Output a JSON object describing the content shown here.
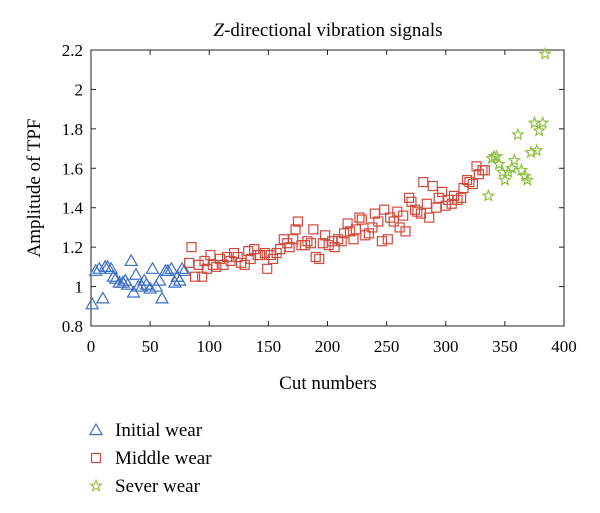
{
  "chart_data": {
    "type": "scatter",
    "title": "Z-directional vibration signals",
    "title_italic_part": "Z",
    "title_rest": "-directional vibration signals",
    "xlabel": "Cut numbers",
    "ylabel": "Amplitude of TPF",
    "xlim": [
      0,
      400
    ],
    "ylim": [
      0.8,
      2.2
    ],
    "x_ticks": [
      0,
      50,
      100,
      150,
      200,
      250,
      300,
      350,
      400
    ],
    "y_ticks": [
      0.8,
      1,
      1.2,
      1.4,
      1.6,
      1.8,
      2,
      2.2
    ],
    "x_tick_labels": [
      "0",
      "50",
      "100",
      "150",
      "200",
      "250",
      "300",
      "350",
      "400"
    ],
    "y_tick_labels": [
      "0.8",
      "1",
      "1.2",
      "1.4",
      "1.6",
      "1.8",
      "2",
      "2.2"
    ],
    "grid": false,
    "legend_position": "below-left",
    "series": [
      {
        "name": "Initial wear",
        "marker": "triangle",
        "color": "#3b6fc4",
        "points": [
          [
            1,
            0.91
          ],
          [
            4,
            1.08
          ],
          [
            7,
            1.09
          ],
          [
            10,
            0.94
          ],
          [
            12,
            1.1
          ],
          [
            14,
            1.1
          ],
          [
            17,
            1.09
          ],
          [
            19,
            1.05
          ],
          [
            21,
            1.04
          ],
          [
            24,
            1.02
          ],
          [
            27,
            1.02
          ],
          [
            29,
            1.03
          ],
          [
            31,
            1.01
          ],
          [
            34,
            1.13
          ],
          [
            36,
            0.97
          ],
          [
            38,
            1.06
          ],
          [
            40,
            1.0
          ],
          [
            43,
            1.0
          ],
          [
            45,
            1.03
          ],
          [
            47,
            1.01
          ],
          [
            50,
            0.99
          ],
          [
            52,
            1.09
          ],
          [
            55,
            1.0
          ],
          [
            58,
            1.03
          ],
          [
            60,
            0.94
          ],
          [
            63,
            1.08
          ],
          [
            65,
            1.08
          ],
          [
            68,
            1.09
          ],
          [
            71,
            1.02
          ],
          [
            73,
            1.05
          ],
          [
            75,
            1.03
          ],
          [
            77,
            1.09
          ],
          [
            79,
            1.08
          ]
        ]
      },
      {
        "name": "Middle wear",
        "marker": "square",
        "color": "#cf4a3c",
        "points": [
          [
            83,
            1.12
          ],
          [
            85,
            1.2
          ],
          [
            88,
            1.05
          ],
          [
            91,
            1.11
          ],
          [
            94,
            1.05
          ],
          [
            96,
            1.13
          ],
          [
            98,
            1.09
          ],
          [
            101,
            1.16
          ],
          [
            103,
            1.11
          ],
          [
            106,
            1.1
          ],
          [
            109,
            1.14
          ],
          [
            112,
            1.11
          ],
          [
            115,
            1.15
          ],
          [
            118,
            1.13
          ],
          [
            121,
            1.17
          ],
          [
            124,
            1.15
          ],
          [
            127,
            1.12
          ],
          [
            130,
            1.11
          ],
          [
            133,
            1.18
          ],
          [
            135,
            1.14
          ],
          [
            138,
            1.19
          ],
          [
            141,
            1.16
          ],
          [
            143,
            1.16
          ],
          [
            147,
            1.17
          ],
          [
            149,
            1.09
          ],
          [
            152,
            1.16
          ],
          [
            154,
            1.14
          ],
          [
            157,
            1.17
          ],
          [
            160,
            1.19
          ],
          [
            163,
            1.24
          ],
          [
            166,
            1.22
          ],
          [
            168,
            1.2
          ],
          [
            171,
            1.24
          ],
          [
            173,
            1.29
          ],
          [
            175,
            1.33
          ],
          [
            178,
            1.21
          ],
          [
            181,
            1.21
          ],
          [
            183,
            1.23
          ],
          [
            186,
            1.22
          ],
          [
            188,
            1.29
          ],
          [
            190,
            1.15
          ],
          [
            193,
            1.14
          ],
          [
            196,
            1.22
          ],
          [
            198,
            1.26
          ],
          [
            201,
            1.21
          ],
          [
            204,
            1.23
          ],
          [
            206,
            1.2
          ],
          [
            209,
            1.24
          ],
          [
            212,
            1.23
          ],
          [
            214,
            1.27
          ],
          [
            217,
            1.32
          ],
          [
            219,
            1.28
          ],
          [
            222,
            1.24
          ],
          [
            224,
            1.29
          ],
          [
            227,
            1.35
          ],
          [
            229,
            1.34
          ],
          [
            232,
            1.26
          ],
          [
            235,
            1.27
          ],
          [
            238,
            1.3
          ],
          [
            240,
            1.37
          ],
          [
            243,
            1.33
          ],
          [
            246,
            1.23
          ],
          [
            248,
            1.39
          ],
          [
            251,
            1.24
          ],
          [
            253,
            1.35
          ],
          [
            256,
            1.33
          ],
          [
            259,
            1.38
          ],
          [
            261,
            1.3
          ],
          [
            264,
            1.36
          ],
          [
            266,
            1.28
          ],
          [
            269,
            1.45
          ],
          [
            271,
            1.43
          ],
          [
            274,
            1.39
          ],
          [
            276,
            1.38
          ],
          [
            279,
            1.37
          ],
          [
            281,
            1.53
          ],
          [
            284,
            1.42
          ],
          [
            286,
            1.35
          ],
          [
            289,
            1.51
          ],
          [
            292,
            1.4
          ],
          [
            294,
            1.45
          ],
          [
            297,
            1.48
          ],
          [
            300,
            1.41
          ],
          [
            302,
            1.44
          ],
          [
            305,
            1.42
          ],
          [
            307,
            1.46
          ],
          [
            310,
            1.44
          ],
          [
            313,
            1.45
          ],
          [
            315,
            1.5
          ],
          [
            318,
            1.54
          ],
          [
            320,
            1.53
          ],
          [
            323,
            1.52
          ],
          [
            326,
            1.61
          ],
          [
            328,
            1.57
          ],
          [
            331,
            1.59
          ],
          [
            333,
            1.59
          ]
        ]
      },
      {
        "name": "Sever wear",
        "marker": "star",
        "color": "#8fbf3f",
        "points": [
          [
            336,
            1.46
          ],
          [
            339,
            1.65
          ],
          [
            341,
            1.66
          ],
          [
            343,
            1.66
          ],
          [
            345,
            1.62
          ],
          [
            348,
            1.58
          ],
          [
            350,
            1.54
          ],
          [
            353,
            1.58
          ],
          [
            356,
            1.6
          ],
          [
            358,
            1.64
          ],
          [
            361,
            1.77
          ],
          [
            364,
            1.59
          ],
          [
            367,
            1.56
          ],
          [
            369,
            1.54
          ],
          [
            372,
            1.68
          ],
          [
            375,
            1.83
          ],
          [
            377,
            1.69
          ],
          [
            379,
            1.79
          ],
          [
            382,
            1.83
          ],
          [
            384,
            2.18
          ]
        ]
      }
    ]
  }
}
